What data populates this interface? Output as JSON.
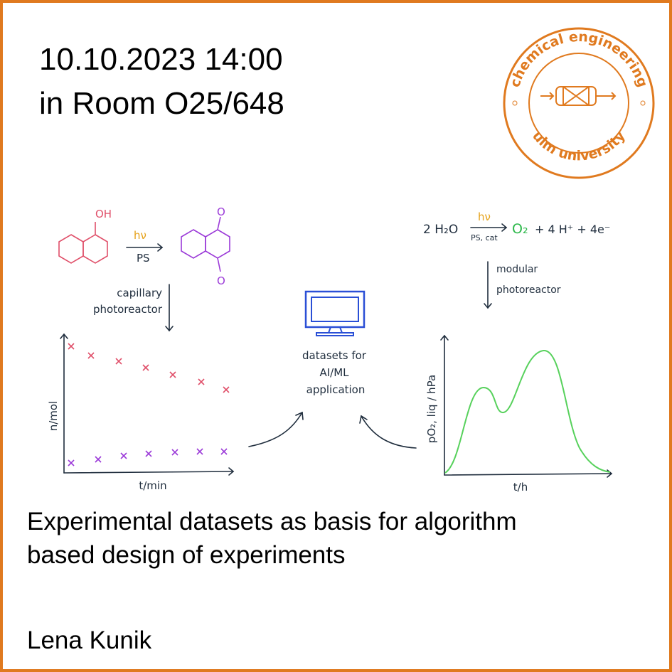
{
  "header": {
    "date": "10.10.2023 14:00",
    "room": "in Room O25/648"
  },
  "logo": {
    "top": "chemical engineering",
    "bottom": "ulm university"
  },
  "left": {
    "oh": "OH",
    "hv": "hν",
    "ps": "PS",
    "reactor": [
      "capillary",
      "photoreactor"
    ],
    "ylabel": "n/mol",
    "xlabel": "t/min"
  },
  "center": {
    "lines": [
      "datasets for",
      "AI/ML",
      "application"
    ]
  },
  "right": {
    "reactant": "2 H₂O",
    "hv": "hν",
    "cond": "PS, cat",
    "product": "O₂",
    "rest": "+ 4 H⁺ + 4e⁻",
    "reactor": [
      "modular",
      "photoreactor"
    ],
    "ylabel": "pO₂, liq / hPa",
    "xlabel": "t/h"
  },
  "talk": {
    "title": [
      "Experimental datasets as basis for algorithm",
      "based design of experiments"
    ],
    "speaker": "Lena Kunik"
  }
}
